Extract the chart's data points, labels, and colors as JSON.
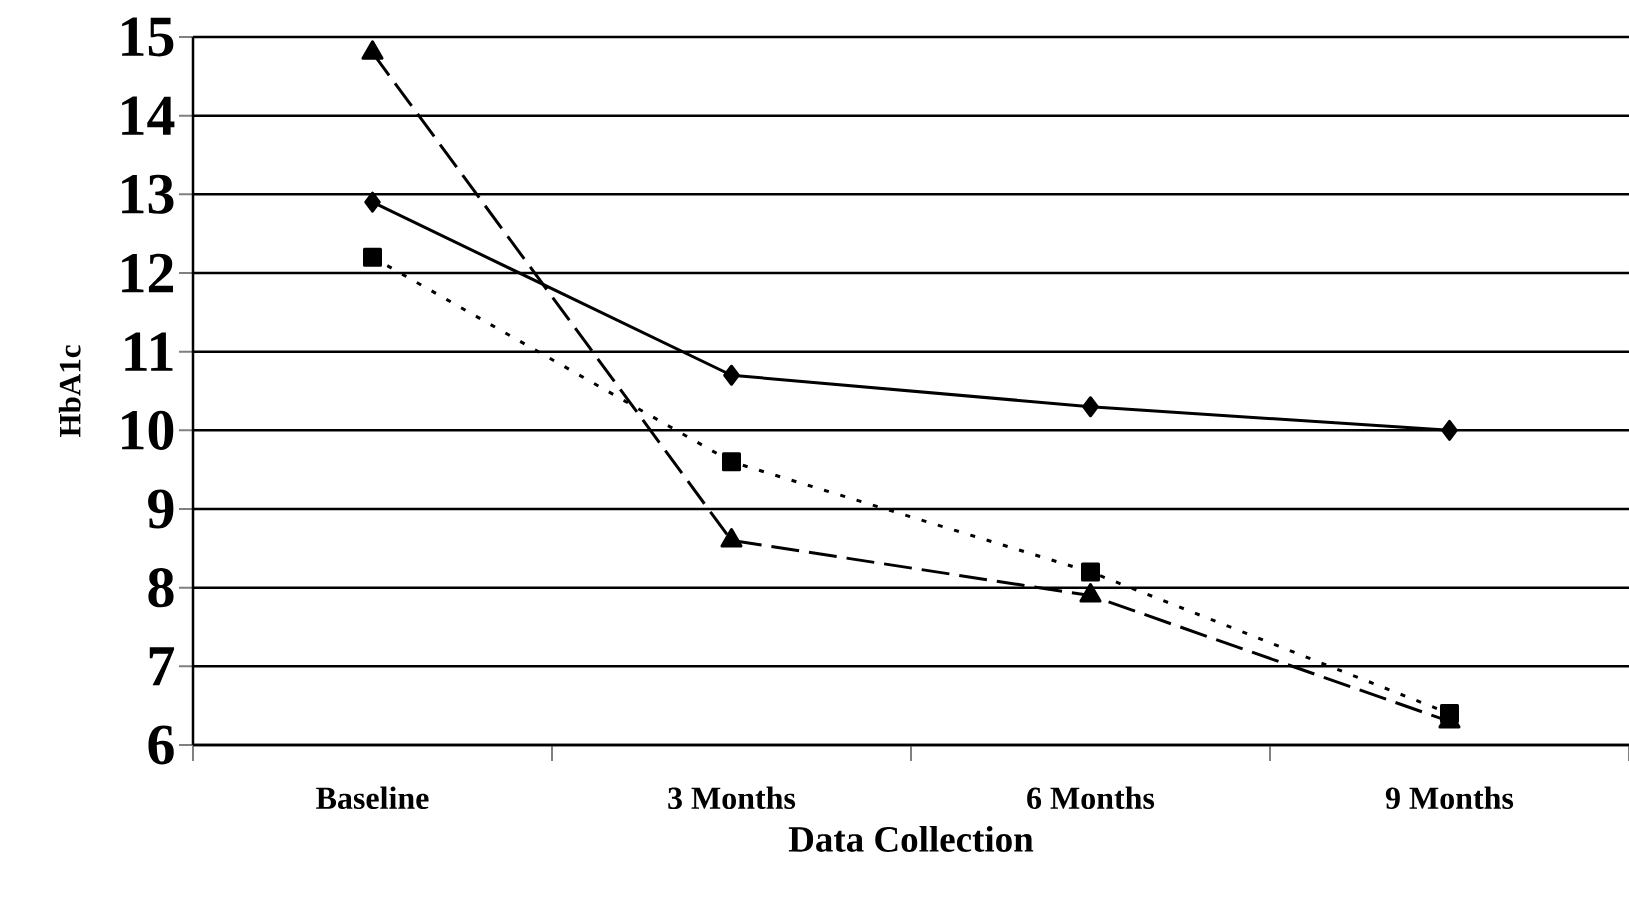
{
  "chart_data": {
    "type": "line",
    "xlabel": "Data Collection",
    "ylabel": "HbA1c",
    "categories": [
      "Baseline",
      "3 Months",
      "6 Months",
      "9 Months"
    ],
    "series": [
      {
        "color": "#000000",
        "marker": "diamond",
        "line_style": "solid",
        "values": [
          12.9,
          10.7,
          10.3,
          10.0
        ]
      },
      {
        "color": "#000000",
        "marker": "square",
        "line_style": "dotted",
        "values": [
          12.2,
          9.6,
          8.2,
          6.4
        ]
      },
      {
        "color": "#000000",
        "marker": "triangle",
        "line_style": "dashed",
        "values": [
          14.8,
          8.6,
          7.9,
          6.3
        ]
      }
    ],
    "ylim": [
      6,
      15
    ],
    "yticks": [
      6,
      7,
      8,
      9,
      10,
      11,
      12,
      13,
      14,
      15
    ],
    "grid": "y"
  }
}
